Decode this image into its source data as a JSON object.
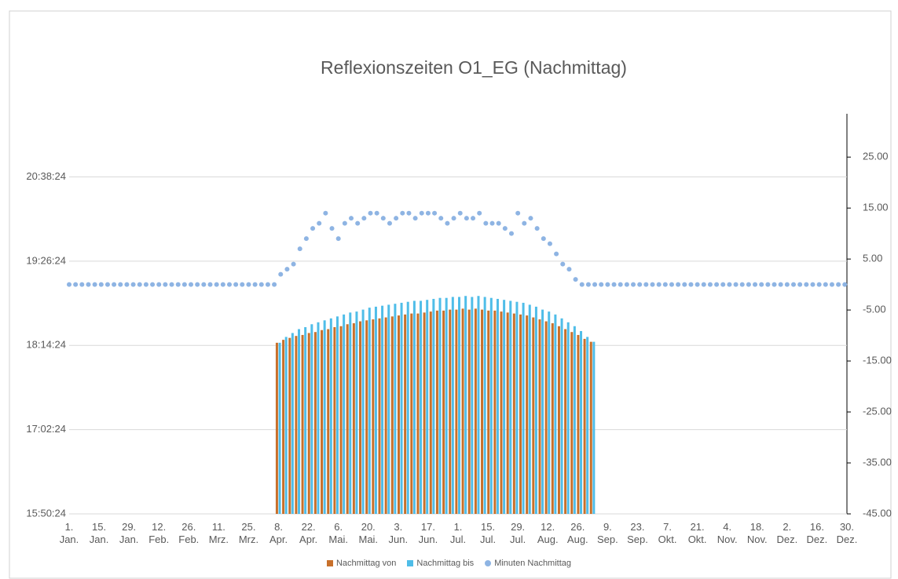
{
  "chart_data": {
    "type": "combo",
    "title": "Reflexionszeiten O1_EG (Nachmittag)",
    "xlim": [
      0,
      364
    ],
    "xticks": [
      {
        "value": 0,
        "label": "1. Jan."
      },
      {
        "value": 14,
        "label": "15. Jan."
      },
      {
        "value": 28,
        "label": "29. Jan."
      },
      {
        "value": 42,
        "label": "12. Feb."
      },
      {
        "value": 56,
        "label": "26. Feb."
      },
      {
        "value": 70,
        "label": "11. Mrz."
      },
      {
        "value": 84,
        "label": "25. Mrz."
      },
      {
        "value": 98,
        "label": "8. Apr."
      },
      {
        "value": 112,
        "label": "22. Apr."
      },
      {
        "value": 126,
        "label": "6. Mai."
      },
      {
        "value": 140,
        "label": "20. Mai."
      },
      {
        "value": 154,
        "label": "3. Jun."
      },
      {
        "value": 168,
        "label": "17. Jun."
      },
      {
        "value": 182,
        "label": "1. Jul."
      },
      {
        "value": 196,
        "label": "15. Jul."
      },
      {
        "value": 210,
        "label": "29. Jul."
      },
      {
        "value": 224,
        "label": "12. Aug."
      },
      {
        "value": 238,
        "label": "26. Aug."
      },
      {
        "value": 252,
        "label": "9. Sep."
      },
      {
        "value": 266,
        "label": "23. Sep."
      },
      {
        "value": 280,
        "label": "7. Okt."
      },
      {
        "value": 294,
        "label": "21. Okt."
      },
      {
        "value": 308,
        "label": "4. Nov."
      },
      {
        "value": 322,
        "label": "18. Nov."
      },
      {
        "value": 336,
        "label": "2. Dez."
      },
      {
        "value": 350,
        "label": "16. Dez."
      },
      {
        "value": 364,
        "label": "30. Dez."
      }
    ],
    "ylim": [
      57024,
      77544
    ],
    "yticks": [
      {
        "value": 57024,
        "label": "15:50:24"
      },
      {
        "value": 61344,
        "label": "17:02:24"
      },
      {
        "value": 65664,
        "label": "18:14:24"
      },
      {
        "value": 69984,
        "label": "19:26:24"
      },
      {
        "value": 74304,
        "label": "20:38:24"
      }
    ],
    "y2lim": [
      -45,
      33.5
    ],
    "y2ticks": [
      {
        "value": -45,
        "label": "-45.00"
      },
      {
        "value": -35,
        "label": "-35.00"
      },
      {
        "value": -25,
        "label": "-25.00"
      },
      {
        "value": -15,
        "label": "-15.00"
      },
      {
        "value": -5,
        "label": "-5.00"
      },
      {
        "value": 5,
        "label": "5.00"
      },
      {
        "value": 15,
        "label": "15.00"
      },
      {
        "value": 25,
        "label": "25.00"
      }
    ],
    "grid": true,
    "legend": "bottom",
    "series": [
      {
        "name": "Nachmittag von",
        "type": "bar",
        "color": "#c8702b",
        "x": [
          98,
          101,
          104,
          107,
          110,
          113,
          116,
          119,
          122,
          125,
          128,
          131,
          134,
          137,
          140,
          143,
          146,
          149,
          152,
          155,
          158,
          161,
          164,
          167,
          170,
          173,
          176,
          179,
          182,
          185,
          188,
          191,
          194,
          197,
          200,
          203,
          206,
          209,
          212,
          215,
          218,
          221,
          224,
          227,
          230,
          233,
          236,
          239,
          242,
          245
        ],
        "values": [
          65800,
          65950,
          66050,
          66150,
          66200,
          66300,
          66350,
          66450,
          66500,
          66600,
          66650,
          66750,
          66800,
          66900,
          66950,
          67000,
          67050,
          67100,
          67150,
          67200,
          67250,
          67300,
          67300,
          67350,
          67400,
          67450,
          67450,
          67500,
          67500,
          67550,
          67500,
          67550,
          67500,
          67450,
          67450,
          67400,
          67350,
          67300,
          67250,
          67200,
          67100,
          67000,
          66900,
          66800,
          66650,
          66500,
          66350,
          66200,
          66000,
          65850
        ]
      },
      {
        "name": "Nachmittag bis",
        "type": "bar",
        "color": "#4fbde8",
        "x": [
          98,
          101,
          104,
          107,
          110,
          113,
          116,
          119,
          122,
          125,
          128,
          131,
          134,
          137,
          140,
          143,
          146,
          149,
          152,
          155,
          158,
          161,
          164,
          167,
          170,
          173,
          176,
          179,
          182,
          185,
          188,
          191,
          194,
          197,
          200,
          203,
          206,
          209,
          212,
          215,
          218,
          221,
          224,
          227,
          230,
          233,
          236,
          239,
          242,
          245
        ],
        "values": [
          65800,
          66100,
          66300,
          66500,
          66600,
          66750,
          66850,
          66950,
          67050,
          67150,
          67250,
          67350,
          67400,
          67500,
          67600,
          67650,
          67700,
          67750,
          67800,
          67850,
          67900,
          67950,
          67950,
          68000,
          68050,
          68100,
          68100,
          68150,
          68150,
          68200,
          68150,
          68200,
          68150,
          68100,
          68050,
          68000,
          67950,
          67900,
          67850,
          67750,
          67650,
          67500,
          67400,
          67250,
          67050,
          66850,
          66650,
          66400,
          66100,
          65850
        ]
      },
      {
        "name": "Minuten Nachmittag",
        "type": "scatter",
        "axis": "y2",
        "color": "#8eb4e3",
        "x": [
          0,
          3,
          6,
          9,
          12,
          15,
          18,
          21,
          24,
          27,
          30,
          33,
          36,
          39,
          42,
          45,
          48,
          51,
          54,
          57,
          60,
          63,
          66,
          69,
          72,
          75,
          78,
          81,
          84,
          87,
          90,
          93,
          96,
          99,
          102,
          105,
          108,
          111,
          114,
          117,
          120,
          123,
          126,
          129,
          132,
          135,
          138,
          141,
          144,
          147,
          150,
          153,
          156,
          159,
          162,
          165,
          168,
          171,
          174,
          177,
          180,
          183,
          186,
          189,
          192,
          195,
          198,
          201,
          204,
          207,
          210,
          213,
          216,
          219,
          222,
          225,
          228,
          231,
          234,
          237,
          240,
          243,
          246,
          249,
          252,
          255,
          258,
          261,
          264,
          267,
          270,
          273,
          276,
          279,
          282,
          285,
          288,
          291,
          294,
          297,
          300,
          303,
          306,
          309,
          312,
          315,
          318,
          321,
          324,
          327,
          330,
          333,
          336,
          339,
          342,
          345,
          348,
          351,
          354,
          357,
          360,
          363
        ],
        "values": [
          0,
          0,
          0,
          0,
          0,
          0,
          0,
          0,
          0,
          0,
          0,
          0,
          0,
          0,
          0,
          0,
          0,
          0,
          0,
          0,
          0,
          0,
          0,
          0,
          0,
          0,
          0,
          0,
          0,
          0,
          0,
          0,
          0,
          2,
          3,
          4,
          7,
          9,
          11,
          12,
          14,
          11,
          9,
          12,
          13,
          12,
          13,
          14,
          14,
          13,
          12,
          13,
          14,
          14,
          13,
          14,
          14,
          14,
          13,
          12,
          13,
          14,
          13,
          13,
          14,
          12,
          12,
          12,
          11,
          10,
          14,
          12,
          13,
          11,
          9,
          8,
          6,
          4,
          3,
          1,
          0,
          0,
          0,
          0,
          0,
          0,
          0,
          0,
          0,
          0,
          0,
          0,
          0,
          0,
          0,
          0,
          0,
          0,
          0,
          0,
          0,
          0,
          0,
          0,
          0,
          0,
          0,
          0,
          0,
          0,
          0,
          0,
          0,
          0,
          0,
          0,
          0,
          0,
          0,
          0,
          0,
          0
        ]
      }
    ]
  }
}
